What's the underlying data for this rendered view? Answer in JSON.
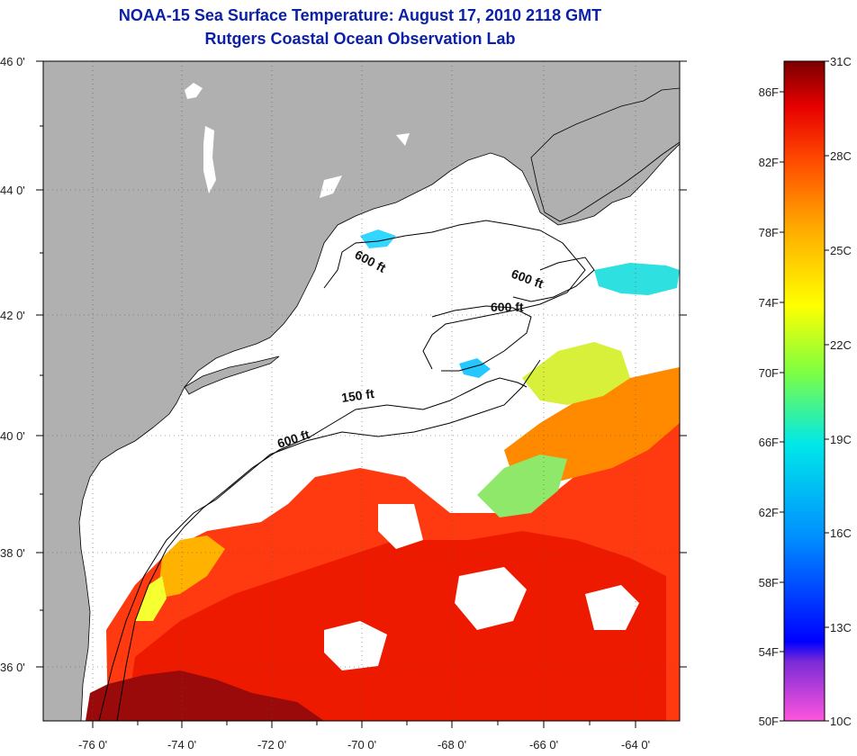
{
  "title": {
    "line1": "NOAA-15 Sea Surface Temperature:  August 17, 2010 2118 GMT",
    "line2": "Rutgers Coastal Ocean Observation Lab"
  },
  "map": {
    "lat_labels": [
      "46 0'",
      "44 0'",
      "42 0'",
      "40 0'",
      "38 0'",
      "36 0'"
    ],
    "lon_labels": [
      "-76 0'",
      "-74 0'",
      "-72 0'",
      "-70 0'",
      "-68 0'",
      "-66 0'",
      "-64 0'"
    ],
    "contour_labels": [
      "600 ft",
      "600 ft",
      "600 ft",
      "150 ft",
      "600 ft"
    ],
    "colors": {
      "land": "#b0b0b0",
      "cloud": "#ffffff",
      "coast": "#000000"
    }
  },
  "colorbar": {
    "fahrenheit_labels": [
      "86F",
      "82F",
      "78F",
      "74F",
      "70F",
      "66F",
      "62F",
      "58F",
      "54F",
      "50F"
    ],
    "celsius_labels": [
      "31C",
      "28C",
      "25C",
      "22C",
      "19C",
      "16C",
      "13C",
      "10C"
    ],
    "colors": [
      "#ff55dd",
      "#7a2bd6",
      "#0000ff",
      "#0090ff",
      "#00e8e8",
      "#7fff40",
      "#ffff00",
      "#ffa800",
      "#ff4a00",
      "#e80000",
      "#7a0000"
    ]
  }
}
